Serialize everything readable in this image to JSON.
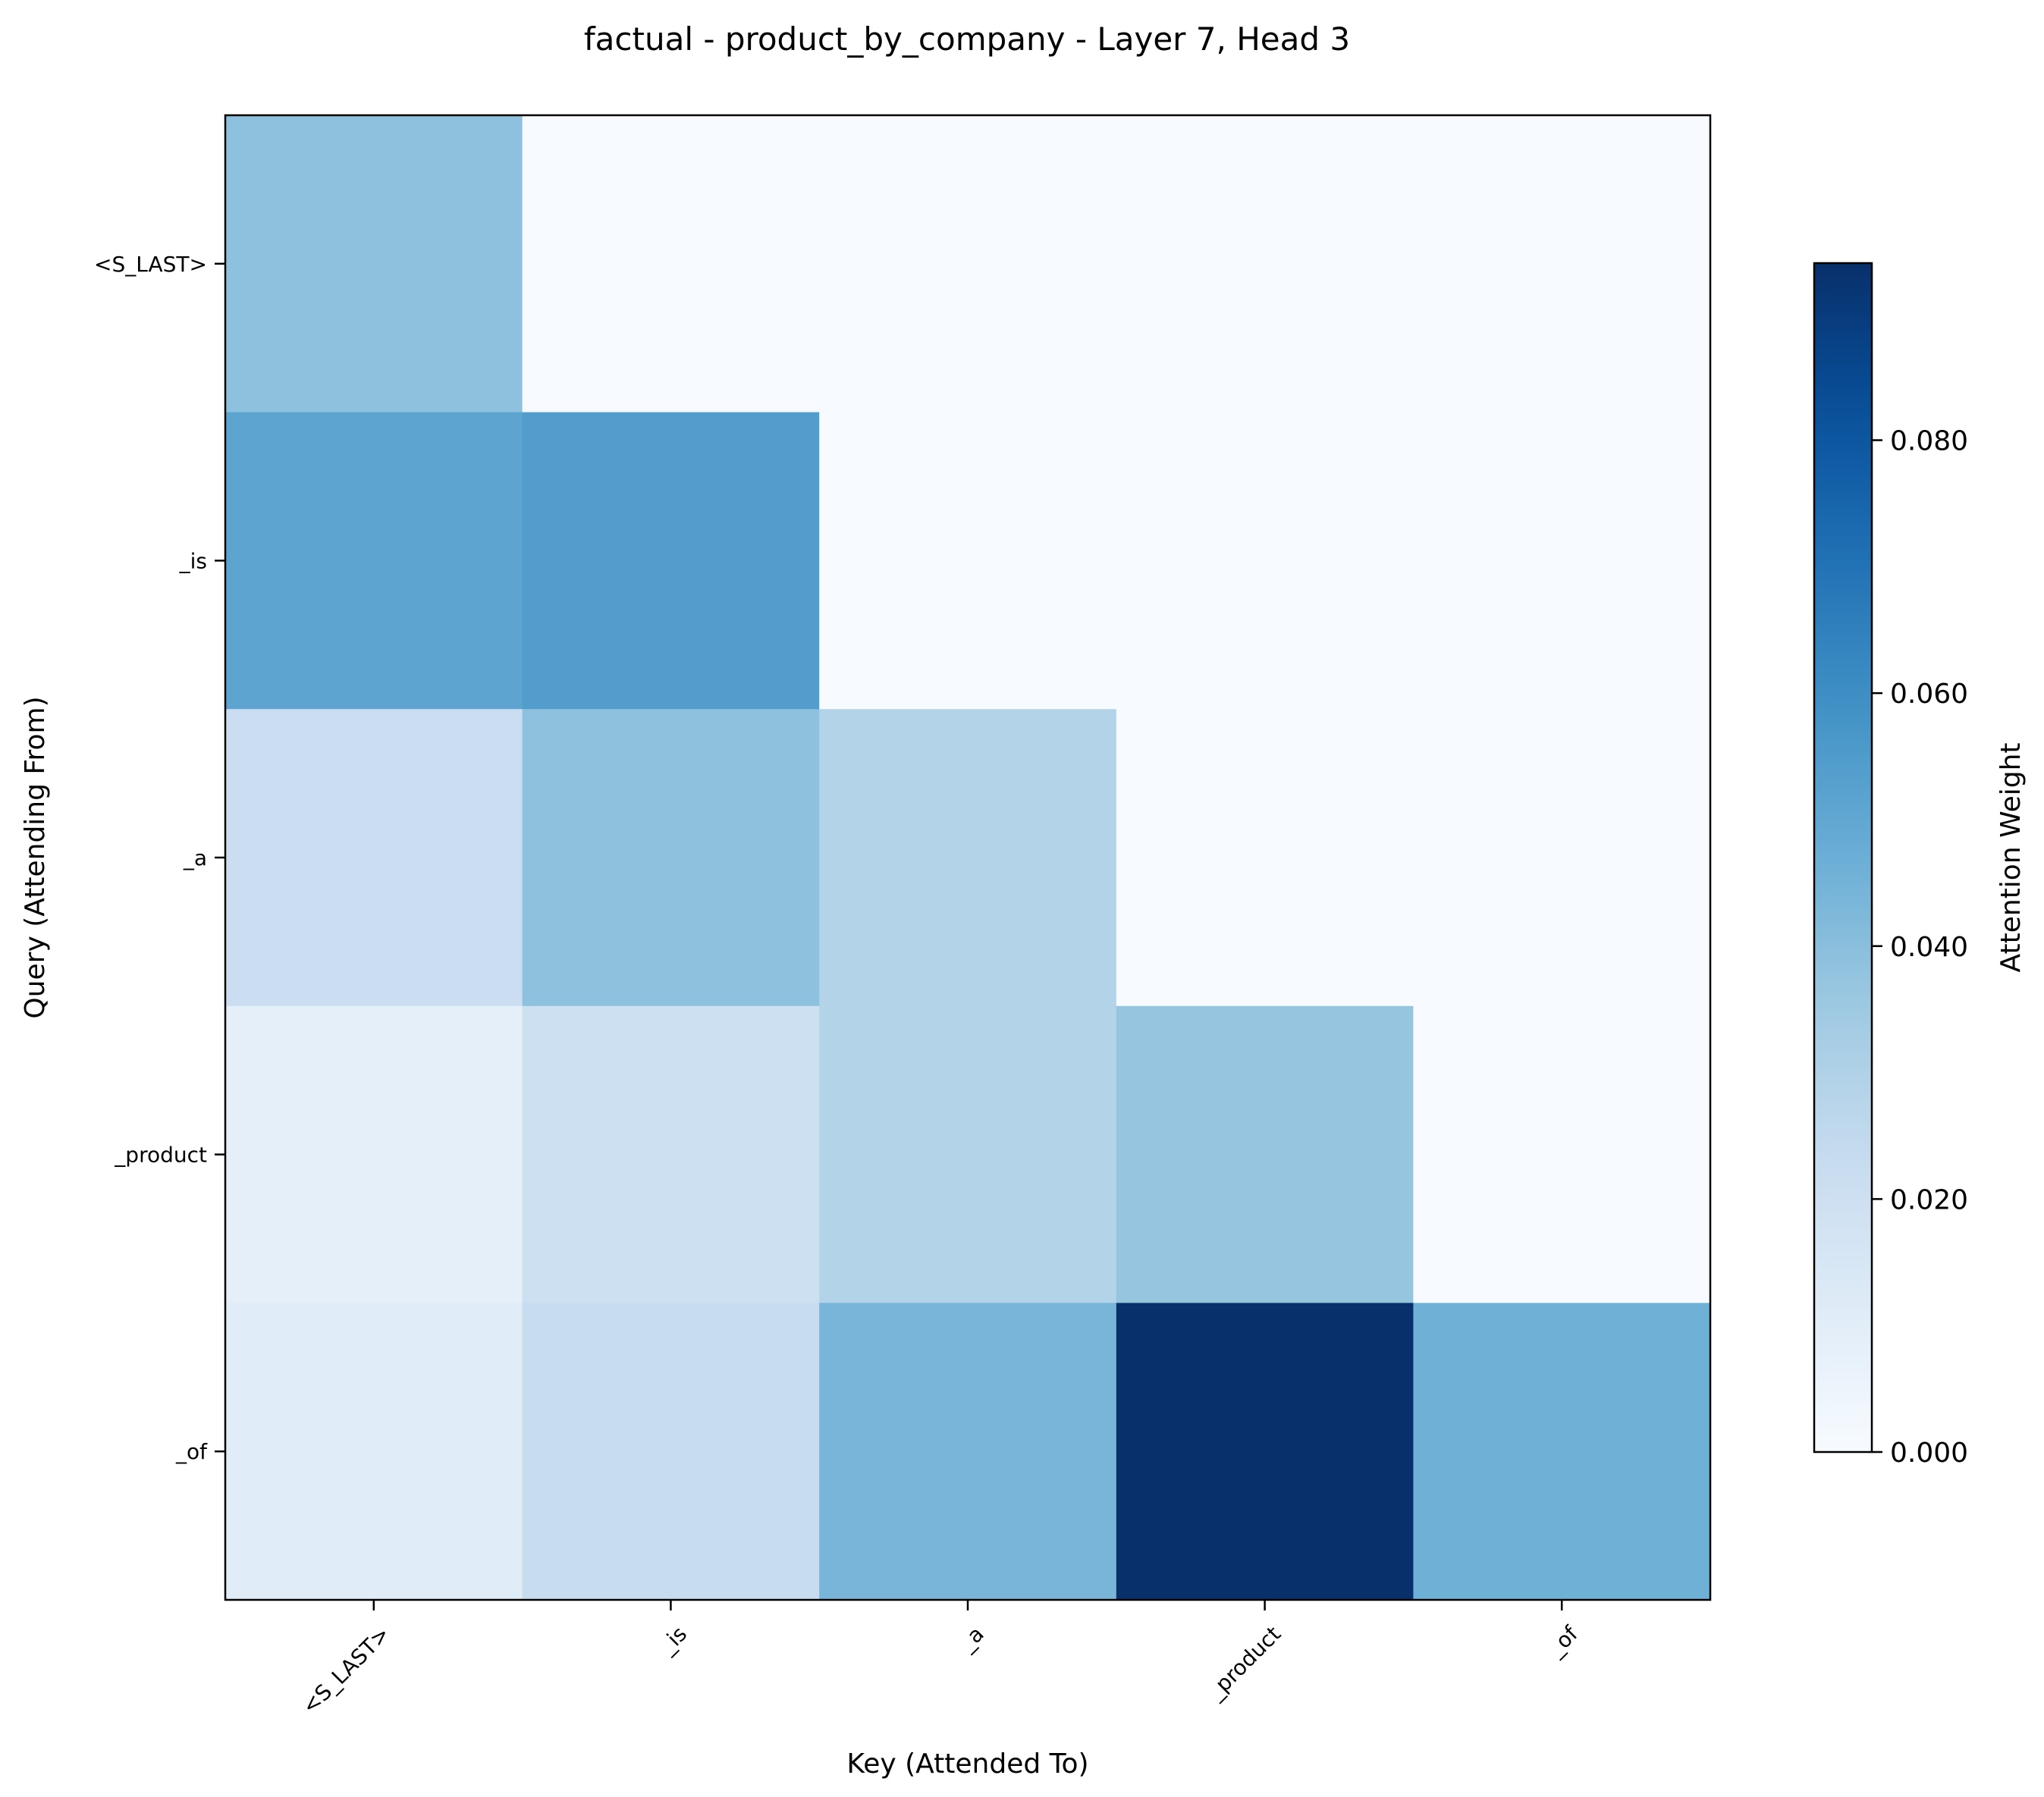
{
  "chart_data": {
    "type": "heatmap",
    "title": "factual - product_by_company - Layer 7, Head 3",
    "xlabel": "Key (Attended To)",
    "ylabel": "Query (Attending From)",
    "x_tokens": [
      "<S_LAST>",
      "_is",
      "_a",
      "_product",
      "_of"
    ],
    "y_tokens": [
      "<S_LAST>",
      "_is",
      "_a",
      "_product",
      "_of"
    ],
    "values": [
      [
        0.039,
        0.0,
        0.0,
        0.0,
        0.0
      ],
      [
        0.051,
        0.054,
        0.0,
        0.0,
        0.0
      ],
      [
        0.021,
        0.039,
        0.029,
        0.0,
        0.0
      ],
      [
        0.009,
        0.02,
        0.029,
        0.037,
        0.0
      ],
      [
        0.011,
        0.023,
        0.044,
        0.094,
        0.046
      ]
    ],
    "colorbar": {
      "label": "Attention Weight",
      "min": 0.0,
      "max": 0.094,
      "ticks": [
        0.0,
        0.02,
        0.04,
        0.06,
        0.08
      ],
      "tick_labels": [
        "0.000",
        "0.020",
        "0.040",
        "0.060",
        "0.080"
      ],
      "colormap": "Blues"
    }
  }
}
